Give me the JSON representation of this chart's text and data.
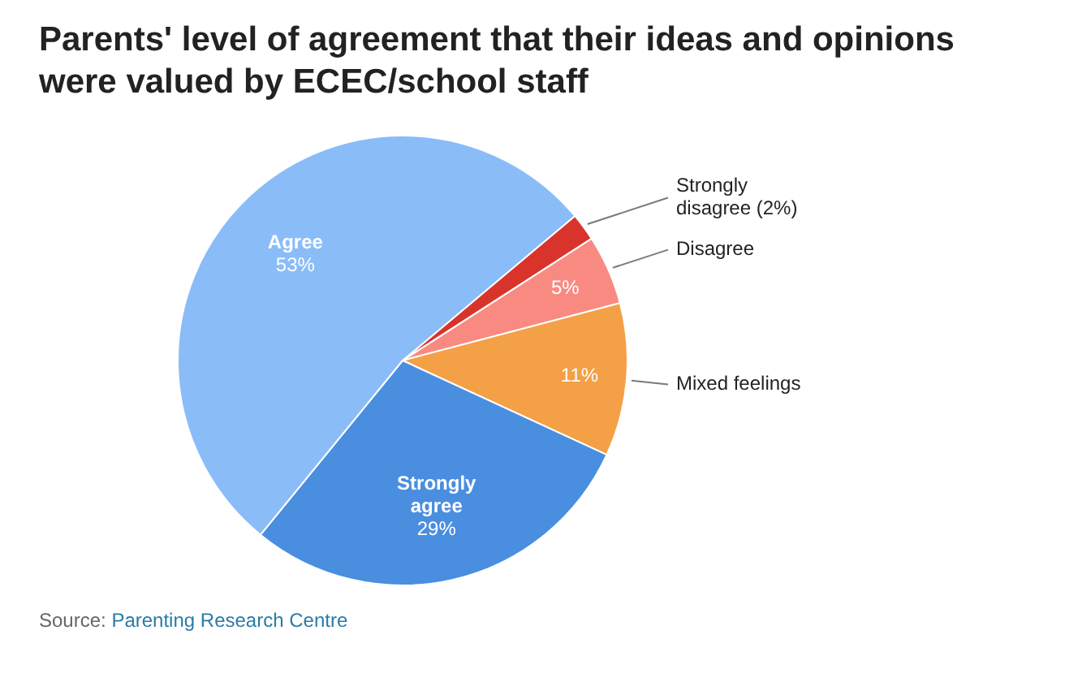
{
  "chart_data": {
    "type": "pie",
    "title": "Parents' level of agreement that their ideas and opinions were valued by ECEC/school staff",
    "categories": [
      "Strongly disagree",
      "Disagree",
      "Mixed feelings",
      "Strongly agree",
      "Agree"
    ],
    "values": [
      2,
      5,
      11,
      29,
      53
    ],
    "colors": [
      "#d9342b",
      "#f98a82",
      "#f4a046",
      "#4a8ee0",
      "#8abcf8"
    ],
    "value_labels": [
      "(2%)",
      "5%",
      "11%",
      "29%",
      "53%"
    ],
    "legend": false,
    "annotations": [
      "Source: Parenting Research Centre"
    ]
  }
}
